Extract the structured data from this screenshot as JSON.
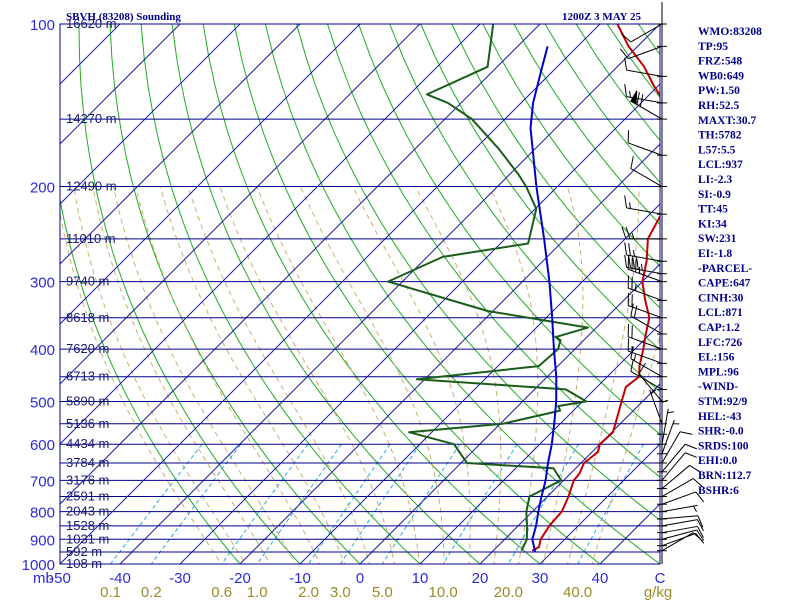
{
  "header": {
    "station": "SBVH (83208) Sounding",
    "time": "1200Z  3 MAY 25"
  },
  "indices": [
    "WMO:83208",
    "TP:95",
    "FRZ:548",
    "WB0:649",
    "PW:1.50",
    "RH:52.5",
    "MAXT:30.7",
    "TH:5782",
    "L57:5.5",
    "LCL:937",
    "LI:-2.3",
    "SI:-0.9",
    "TT:45",
    "KI:34",
    "SW:231",
    "EI:-1.8",
    "-PARCEL-",
    "CAPE:647",
    "CINH:30",
    "LCL:871",
    "CAP:1.2",
    "LFC:726",
    "EL:156",
    "MPL:96",
    "-WIND-",
    "STM:92/9",
    "HEL:-43",
    "SHR:-0.0",
    "SRDS:100",
    "EHI:0.0",
    "BRN:112.7",
    "BSHR:6"
  ],
  "colors": {
    "frame": "#00008b",
    "isobar": "#00008b",
    "isotherm": "#1e1ea8",
    "dry_adiabat": "#22aa22",
    "moist_adiabat": "#c8b070",
    "mixing_ratio": "#2aa8e0",
    "temperature": "#c00000",
    "dewpoint": "#1a5c1a",
    "parcel": "#0000c8",
    "wind_barb": "#000000",
    "label_blue": "#2b2bd6",
    "label_gold": "#9a8a2a"
  },
  "chart_data": {
    "type": "skew-t log-p",
    "xlabel": "C",
    "unit_label": "mb",
    "mixing_ratio_unit": "g/kg",
    "ylim": [
      1000,
      100
    ],
    "xlim": [
      -50,
      50
    ],
    "pressure_ticks": [
      100,
      200,
      300,
      400,
      500,
      600,
      700,
      800,
      900,
      1000
    ],
    "temperature_ticks": [
      -50,
      -40,
      -30,
      -20,
      -10,
      0,
      10,
      20,
      30,
      40,
      50
    ],
    "temperature_tick_labels": [
      "-50",
      "-40",
      "-30",
      "-20",
      "-10",
      "0",
      "10",
      "20",
      "30",
      "40",
      "C"
    ],
    "mixing_ratio_ticks": [
      "0.1",
      "0.2",
      "0.6",
      "1.0",
      "2.0",
      "3.0",
      "5.0",
      "10.0",
      "20.0",
      "40.0"
    ],
    "mixing_ratio_values": [
      0.1,
      0.2,
      0.6,
      1.0,
      2.0,
      3.0,
      5.0,
      10.0,
      20.0,
      40.0
    ],
    "height_levels": [
      {
        "p": 100,
        "label": "16620 m"
      },
      {
        "p": 150,
        "label": "14270 m"
      },
      {
        "p": 200,
        "label": "12490 m"
      },
      {
        "p": 250,
        "label": "11010 m"
      },
      {
        "p": 300,
        "label": "9740 m"
      },
      {
        "p": 350,
        "label": "8618 m"
      },
      {
        "p": 400,
        "label": "7620 m"
      },
      {
        "p": 450,
        "label": "6713 m"
      },
      {
        "p": 500,
        "label": "5890 m"
      },
      {
        "p": 550,
        "label": "5136 m"
      },
      {
        "p": 600,
        "label": "4434 m"
      },
      {
        "p": 650,
        "label": "3784 m"
      },
      {
        "p": 700,
        "label": "3176 m"
      },
      {
        "p": 750,
        "label": "2591 m"
      },
      {
        "p": 800,
        "label": "2043 m"
      },
      {
        "p": 850,
        "label": "1528 m"
      },
      {
        "p": 900,
        "label": "1031 m"
      },
      {
        "p": 950,
        "label": "592 m"
      },
      {
        "p": 1000,
        "label": "108 m"
      }
    ],
    "series": [
      {
        "key": "temperature",
        "points": [
          [
            945,
            26.5
          ],
          [
            930,
            27.0
          ],
          [
            900,
            26.0
          ],
          [
            850,
            25.2
          ],
          [
            800,
            24.9
          ],
          [
            750,
            23.5
          ],
          [
            700,
            21.7
          ],
          [
            680,
            21.5
          ],
          [
            650,
            20.5
          ],
          [
            620,
            21.0
          ],
          [
            600,
            20.0
          ],
          [
            570,
            20.2
          ],
          [
            550,
            19.2
          ],
          [
            500,
            16.5
          ],
          [
            470,
            14.8
          ],
          [
            450,
            15.3
          ],
          [
            430,
            13.6
          ],
          [
            400,
            11.4
          ],
          [
            375,
            9.3
          ],
          [
            350,
            7.2
          ],
          [
            325,
            3.6
          ],
          [
            300,
            0.0
          ],
          [
            275,
            -2.7
          ],
          [
            250,
            -6.2
          ],
          [
            225,
            -8.1
          ],
          [
            200,
            -11.8
          ],
          [
            180,
            -14.9
          ],
          [
            175,
            -17.4
          ],
          [
            170,
            -16.9
          ],
          [
            160,
            -18.3
          ],
          [
            150,
            -21.6
          ],
          [
            140,
            -26.0
          ],
          [
            130,
            -30.8
          ],
          [
            120,
            -35.5
          ],
          [
            110,
            -41.5
          ],
          [
            100,
            -47.1
          ]
        ]
      },
      {
        "key": "dewpoint",
        "points": [
          [
            945,
            24.7
          ],
          [
            900,
            23.7
          ],
          [
            850,
            21.5
          ],
          [
            800,
            19.0
          ],
          [
            750,
            17.0
          ],
          [
            700,
            19.6
          ],
          [
            665,
            16.3
          ],
          [
            650,
            1.0
          ],
          [
            600,
            -4.3
          ],
          [
            570,
            -13.8
          ],
          [
            550,
            0.4
          ],
          [
            520,
            7.8
          ],
          [
            510,
            6.7
          ],
          [
            500,
            10.6
          ],
          [
            475,
            5.2
          ],
          [
            455,
            -21.3
          ],
          [
            430,
            -3.2
          ],
          [
            400,
            -2.8
          ],
          [
            385,
            -3.9
          ],
          [
            380,
            -5.2
          ],
          [
            365,
            -1.4
          ],
          [
            340,
            -20.9
          ],
          [
            300,
            -42.4
          ],
          [
            270,
            -37.4
          ],
          [
            255,
            -25.4
          ],
          [
            220,
            -29.8
          ],
          [
            200,
            -35.2
          ],
          [
            190,
            -38.5
          ],
          [
            170,
            -46.2
          ],
          [
            150,
            -55.5
          ],
          [
            140,
            -62.2
          ],
          [
            135,
            -67.1
          ],
          [
            120,
            -61.6
          ],
          [
            100,
            -67.8
          ]
        ]
      },
      {
        "key": "parcel",
        "points": [
          [
            950,
            27.2
          ],
          [
            900,
            24.6
          ],
          [
            850,
            23.0
          ],
          [
            800,
            21.0
          ],
          [
            750,
            19.0
          ],
          [
            700,
            17.0
          ],
          [
            650,
            14.5
          ],
          [
            600,
            12.0
          ],
          [
            550,
            9.0
          ],
          [
            500,
            5.6
          ],
          [
            450,
            1.5
          ],
          [
            400,
            -3.5
          ],
          [
            350,
            -9.0
          ],
          [
            300,
            -15.5
          ],
          [
            250,
            -23.5
          ],
          [
            200,
            -33.5
          ],
          [
            170,
            -40.5
          ],
          [
            156,
            -44.2
          ],
          [
            140,
            -48.0
          ],
          [
            120,
            -52.5
          ],
          [
            110,
            -55.0
          ]
        ]
      }
    ],
    "wind_barbs": [
      {
        "p": 945,
        "dir": 60,
        "speed": 10
      },
      {
        "p": 925,
        "dir": 70,
        "speed": 10
      },
      {
        "p": 900,
        "dir": 75,
        "speed": 10
      },
      {
        "p": 875,
        "dir": 80,
        "speed": 10
      },
      {
        "p": 850,
        "dir": 80,
        "speed": 10
      },
      {
        "p": 825,
        "dir": 85,
        "speed": 10
      },
      {
        "p": 800,
        "dir": 80,
        "speed": 5
      },
      {
        "p": 775,
        "dir": 70,
        "speed": 10
      },
      {
        "p": 750,
        "dir": 60,
        "speed": 10
      },
      {
        "p": 725,
        "dir": 50,
        "speed": 10
      },
      {
        "p": 700,
        "dir": 40,
        "speed": 10
      },
      {
        "p": 675,
        "dir": 40,
        "speed": 10
      },
      {
        "p": 650,
        "dir": 30,
        "speed": 10
      },
      {
        "p": 625,
        "dir": 20,
        "speed": 5
      },
      {
        "p": 600,
        "dir": 10,
        "speed": 5
      },
      {
        "p": 575,
        "dir": 360,
        "speed": 5
      },
      {
        "p": 550,
        "dir": 340,
        "speed": 5
      },
      {
        "p": 500,
        "dir": 320,
        "speed": 10
      },
      {
        "p": 475,
        "dir": 300,
        "speed": 10
      },
      {
        "p": 450,
        "dir": 300,
        "speed": 15
      },
      {
        "p": 425,
        "dir": 290,
        "speed": 15
      },
      {
        "p": 400,
        "dir": 290,
        "speed": 20
      },
      {
        "p": 375,
        "dir": 300,
        "speed": 20
      },
      {
        "p": 350,
        "dir": 290,
        "speed": 20
      },
      {
        "p": 325,
        "dir": 290,
        "speed": 25
      },
      {
        "p": 300,
        "dir": 290,
        "speed": 35
      },
      {
        "p": 290,
        "dir": 280,
        "speed": 45
      },
      {
        "p": 275,
        "dir": 280,
        "speed": 25
      },
      {
        "p": 250,
        "dir": 270,
        "speed": 25
      },
      {
        "p": 225,
        "dir": 280,
        "speed": 15
      },
      {
        "p": 200,
        "dir": 300,
        "speed": 10
      },
      {
        "p": 175,
        "dir": 290,
        "speed": 10
      },
      {
        "p": 150,
        "dir": 300,
        "speed": 70
      },
      {
        "p": 140,
        "dir": 280,
        "speed": 15
      },
      {
        "p": 125,
        "dir": 280,
        "speed": 10
      },
      {
        "p": 110,
        "dir": 250,
        "speed": 10
      },
      {
        "p": 100,
        "dir": 240,
        "speed": 10
      }
    ]
  }
}
